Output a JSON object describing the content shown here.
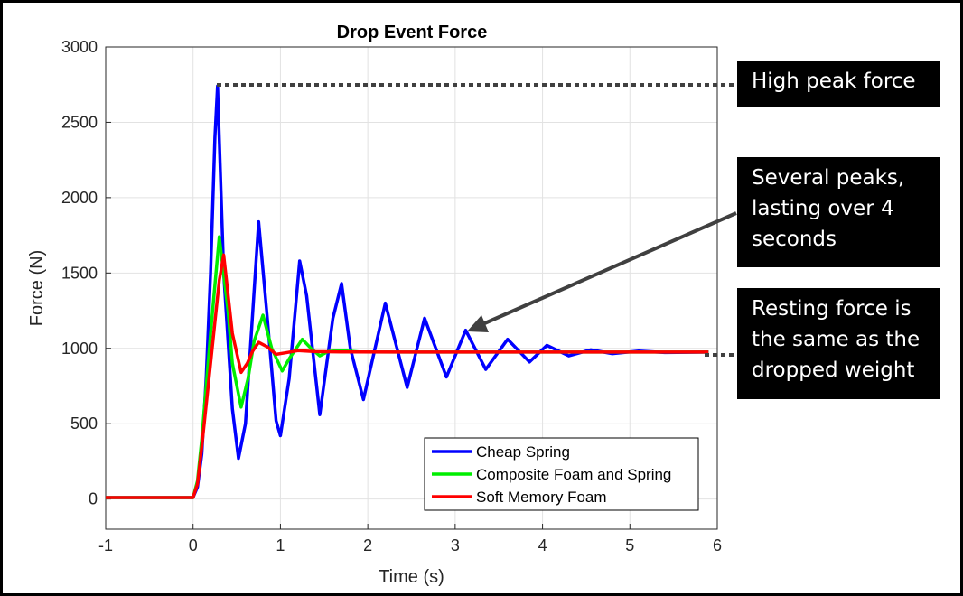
{
  "chart_data": {
    "type": "line",
    "title": "Drop Event Force",
    "xlabel": "Time (s)",
    "ylabel": "Force (N)",
    "xlim": [
      -1,
      6
    ],
    "ylim": [
      -200,
      3000
    ],
    "xticks": [
      -1,
      0,
      1,
      2,
      3,
      4,
      5,
      6
    ],
    "yticks": [
      0,
      500,
      1000,
      1500,
      2000,
      2500,
      3000
    ],
    "grid": true,
    "legend_position": "bottom-right",
    "series": [
      {
        "name": "Cheap Spring",
        "color": "#0000ff",
        "x": [
          -1,
          0,
          0.05,
          0.1,
          0.15,
          0.2,
          0.25,
          0.28,
          0.35,
          0.45,
          0.52,
          0.6,
          0.75,
          0.85,
          0.95,
          1.0,
          1.1,
          1.22,
          1.3,
          1.45,
          1.6,
          1.7,
          1.8,
          1.95,
          2.2,
          2.45,
          2.65,
          2.9,
          3.12,
          3.35,
          3.6,
          3.85,
          4.05,
          4.3,
          4.55,
          4.8,
          5.1,
          5.4,
          5.9
        ],
        "y": [
          10,
          10,
          80,
          300,
          800,
          1500,
          2400,
          2740,
          1500,
          600,
          270,
          500,
          1840,
          1200,
          520,
          420,
          800,
          1580,
          1350,
          560,
          1200,
          1430,
          1000,
          660,
          1300,
          740,
          1200,
          810,
          1120,
          860,
          1060,
          910,
          1020,
          950,
          990,
          965,
          982,
          972,
          975
        ]
      },
      {
        "name": "Composite Foam and Spring",
        "color": "#00ee00",
        "x": [
          -1,
          0,
          0.05,
          0.1,
          0.2,
          0.3,
          0.4,
          0.45,
          0.55,
          0.63,
          0.7,
          0.8,
          0.9,
          1.02,
          1.1,
          1.25,
          1.35,
          1.45,
          1.55,
          1.7,
          1.9,
          2.5,
          5.9
        ],
        "y": [
          10,
          10,
          120,
          400,
          1100,
          1740,
          1250,
          900,
          610,
          800,
          1050,
          1220,
          1000,
          850,
          930,
          1060,
          1000,
          950,
          980,
          985,
          976,
          975,
          975
        ]
      },
      {
        "name": "Soft Memory Foam",
        "color": "#ff0000",
        "x": [
          -1,
          0,
          0.05,
          0.1,
          0.2,
          0.3,
          0.35,
          0.45,
          0.55,
          0.62,
          0.68,
          0.75,
          0.85,
          0.95,
          1.05,
          1.2,
          1.4,
          1.7,
          2.5,
          5.9
        ],
        "y": [
          10,
          10,
          100,
          350,
          900,
          1450,
          1620,
          1100,
          840,
          900,
          980,
          1040,
          1010,
          960,
          970,
          985,
          978,
          976,
          975,
          975
        ]
      }
    ]
  },
  "callouts": {
    "high_peak": "High peak force",
    "several_peaks": [
      "Several peaks,",
      "lasting over 4",
      "seconds"
    ],
    "resting": [
      "Resting force is",
      "the same as the",
      "dropped weight"
    ]
  }
}
